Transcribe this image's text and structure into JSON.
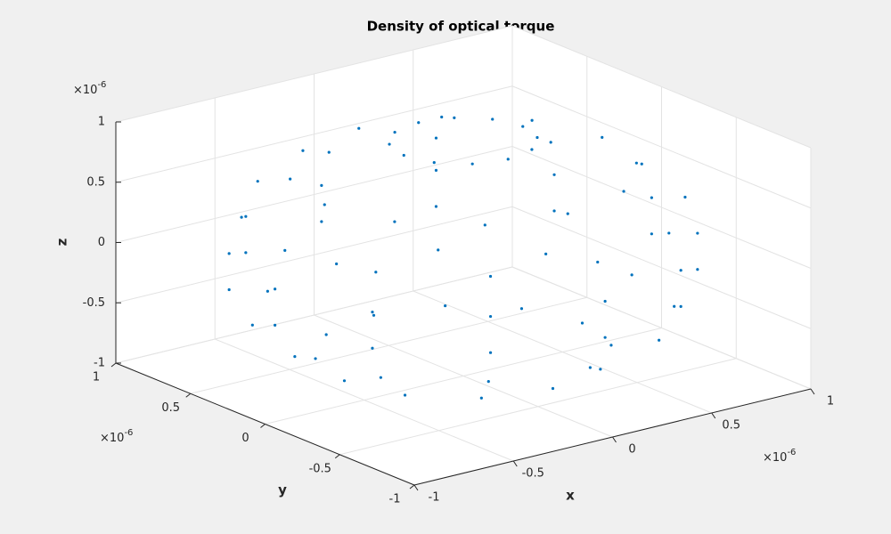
{
  "chart_data": {
    "type": "scatter3d",
    "title": "Density of optical torque",
    "xlabel": "x",
    "ylabel": "y",
    "zlabel": "z",
    "axis_multipliers": {
      "x": {
        "base": "×10",
        "exponent": "-6"
      },
      "y": {
        "base": "×10",
        "exponent": "-6"
      },
      "z": {
        "base": "×10",
        "exponent": "-6"
      }
    },
    "color": "#0072bd",
    "grid": true,
    "xlim": [
      -1,
      1
    ],
    "ylim": [
      -1,
      1
    ],
    "zlim": [
      -1,
      1
    ],
    "xticks": [
      -1,
      -0.5,
      0,
      0.5,
      1
    ],
    "yticks": [
      -1,
      -0.5,
      0,
      0.5,
      1
    ],
    "zticks": [
      -1,
      -0.5,
      0,
      0.5,
      1
    ],
    "x": [
      0.6,
      0.52,
      0.3,
      0,
      -0.3,
      -0.52,
      -0.6,
      -0.52,
      -0.3,
      0,
      0.3,
      0.52,
      0.85,
      0.74,
      0.43,
      0,
      -0.43,
      -0.74,
      -0.85,
      -0.74,
      -0.43,
      0,
      0.43,
      0.74,
      0.95,
      0.82,
      0.48,
      0,
      -0.48,
      -0.82,
      -0.95,
      -0.82,
      -0.48,
      0,
      0.48,
      0.82,
      0.95,
      0.82,
      0.48,
      0,
      -0.48,
      -0.82,
      -0.95,
      -0.82,
      -0.48,
      0,
      0.48,
      0.82,
      0.9,
      0.78,
      0.45,
      0,
      -0.45,
      -0.78,
      -0.9,
      -0.78,
      -0.45,
      0,
      0.45,
      0.78,
      0.7,
      0.61,
      0.35,
      0,
      -0.35,
      -0.61,
      -0.7,
      -0.61,
      -0.35,
      0,
      0.35,
      0.61,
      0.3,
      0.26,
      0.15,
      0,
      -0.15,
      -0.26,
      -0.3,
      -0.26,
      -0.15,
      0,
      0.15,
      0.26
    ],
    "y": [
      0,
      0.3,
      0.52,
      0.6,
      0.52,
      0.3,
      0,
      -0.3,
      -0.52,
      -0.6,
      -0.52,
      -0.3,
      0,
      0.43,
      0.74,
      0.85,
      0.74,
      0.43,
      0,
      -0.43,
      -0.74,
      -0.85,
      -0.74,
      -0.43,
      0,
      0.48,
      0.82,
      0.95,
      0.82,
      0.48,
      0,
      -0.48,
      -0.82,
      -0.95,
      -0.82,
      -0.48,
      0,
      0.48,
      0.82,
      0.95,
      0.82,
      0.48,
      0,
      -0.48,
      -0.82,
      -0.95,
      -0.82,
      -0.48,
      0,
      0.45,
      0.78,
      0.9,
      0.78,
      0.45,
      0,
      -0.45,
      -0.78,
      -0.9,
      -0.78,
      -0.45,
      0,
      0.35,
      0.61,
      0.7,
      0.61,
      0.35,
      0,
      -0.35,
      -0.61,
      -0.7,
      -0.61,
      -0.35,
      0,
      0.15,
      0.26,
      0.3,
      0.26,
      0.15,
      0,
      -0.15,
      -0.26,
      -0.3,
      -0.26,
      -0.15
    ],
    "z": [
      -0.8,
      -0.8,
      -0.8,
      -0.8,
      -0.8,
      -0.8,
      -0.8,
      -0.8,
      -0.8,
      -0.8,
      -0.8,
      -0.8,
      -0.5,
      -0.5,
      -0.5,
      -0.5,
      -0.5,
      -0.5,
      -0.5,
      -0.5,
      -0.5,
      -0.5,
      -0.5,
      -0.5,
      -0.2,
      -0.2,
      -0.2,
      -0.2,
      -0.2,
      -0.2,
      -0.2,
      -0.2,
      -0.2,
      -0.2,
      -0.2,
      -0.2,
      0.1,
      0.1,
      0.1,
      0.1,
      0.1,
      0.1,
      0.1,
      0.1,
      0.1,
      0.1,
      0.1,
      0.1,
      0.4,
      0.4,
      0.4,
      0.4,
      0.4,
      0.4,
      0.4,
      0.4,
      0.4,
      0.4,
      0.4,
      0.4,
      0.7,
      0.7,
      0.7,
      0.7,
      0.7,
      0.7,
      0.7,
      0.7,
      0.7,
      0.7,
      0.7,
      0.7,
      0.95,
      0.95,
      0.95,
      0.95,
      0.95,
      0.95,
      0.95,
      0.95,
      0.95,
      0.95,
      0.95,
      0.95
    ]
  }
}
